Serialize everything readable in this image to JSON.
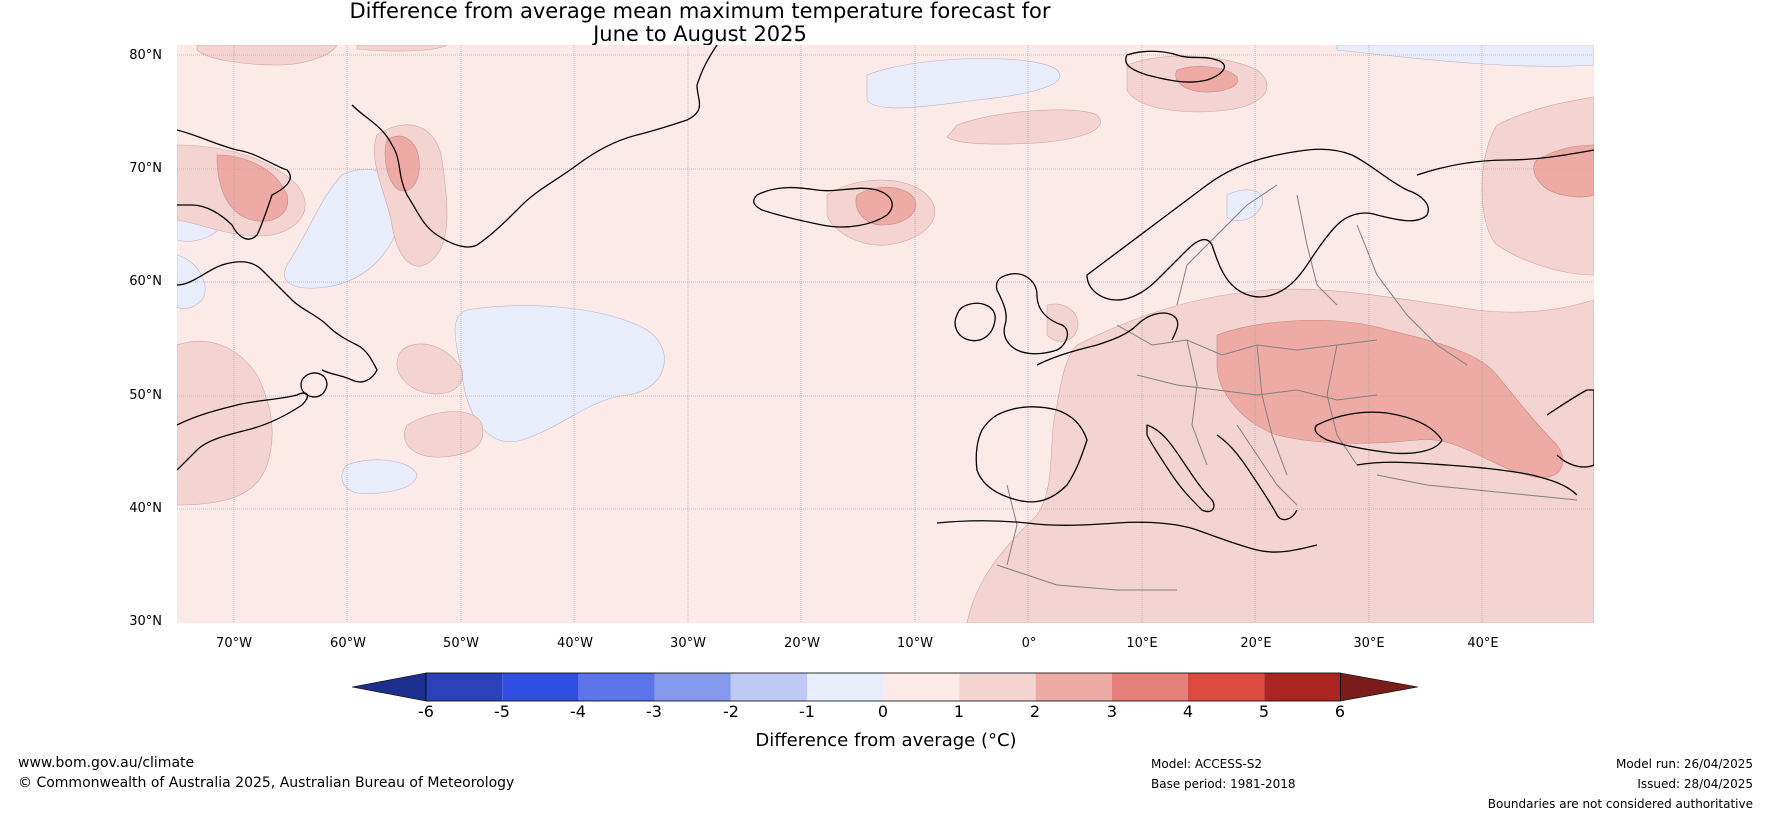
{
  "title_line1": "Difference from average mean maximum temperature forecast for",
  "title_line2": "June to August 2025",
  "lat_labels": [
    "80°N",
    "70°N",
    "60°N",
    "50°N",
    "40°N",
    "30°N"
  ],
  "lon_labels": [
    "70°W",
    "60°W",
    "50°W",
    "40°W",
    "30°W",
    "20°W",
    "10°W",
    "0°",
    "10°E",
    "20°E",
    "30°E",
    "40°E"
  ],
  "colorbar": {
    "ticks": [
      "-6",
      "-5",
      "-4",
      "-3",
      "-2",
      "-1",
      "0",
      "1",
      "2",
      "3",
      "4",
      "5",
      "6"
    ],
    "colors": [
      "#1c2f8f",
      "#2a41b7",
      "#304ee0",
      "#5b74e8",
      "#8599ec",
      "#bec9f4",
      "#e8ecfb",
      "#fbeae8",
      "#f4d4d1",
      "#eeaba6",
      "#e5807a",
      "#dc4a40",
      "#ac2621",
      "#7a1c19"
    ],
    "label": "Difference from average (°C)"
  },
  "map_colors": {
    "background": "#fbeae8",
    "warm1": "#f4d4d1",
    "warm2": "#eeaba6",
    "cool": "#e8ecfb",
    "coast": "#000000",
    "border": "#808080",
    "grid": "#999999"
  },
  "footer": {
    "url": "www.bom.gov.au/climate",
    "copyright": "© Commonwealth of Australia 2025, Australian Bureau of Meteorology",
    "model": "Model: ACCESS-S2",
    "base_period": "Base period: 1981-2018",
    "model_run": "Model run: 26/04/2025",
    "issued": "Issued: 28/04/2025",
    "disclaimer": "Boundaries are not considered authoritative"
  }
}
